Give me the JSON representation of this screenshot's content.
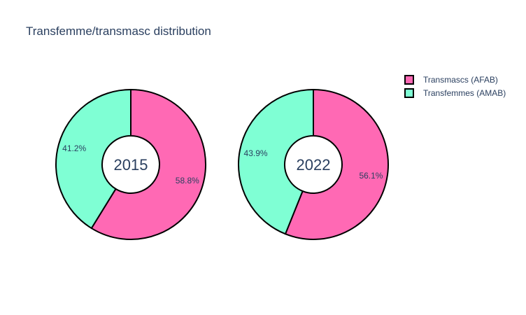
{
  "chart_data": {
    "type": "pie",
    "title": "Transfemme/transmasc distribution",
    "categories": [
      "Transmascs (AFAB)",
      "Transfemmes (AMAB)"
    ],
    "colors": {
      "Transmascs (AFAB)": "#ff69b4",
      "Transfemmes (AMAB)": "#7fffd4"
    },
    "legend": {
      "placement": "top-right",
      "entries": [
        "Transmascs (AFAB)",
        "Transfemmes (AMAB)"
      ]
    },
    "charts": [
      {
        "center_label": "2015",
        "slices": [
          {
            "label": "Transmascs (AFAB)",
            "value": 58.8,
            "text": "58.8%"
          },
          {
            "label": "Transfemmes (AMAB)",
            "value": 41.2,
            "text": "41.2%"
          }
        ]
      },
      {
        "center_label": "2022",
        "slices": [
          {
            "label": "Transmascs (AFAB)",
            "value": 56.1,
            "text": "56.1%"
          },
          {
            "label": "Transfemmes (AMAB)",
            "value": 43.9,
            "text": "43.9%"
          }
        ]
      }
    ]
  }
}
